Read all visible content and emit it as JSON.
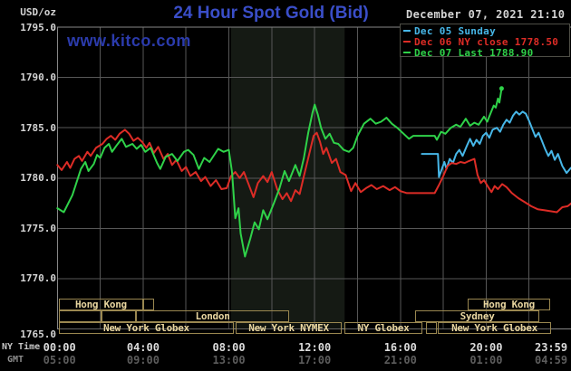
{
  "header": {
    "title": "24 Hour Spot Gold (Bid)",
    "datetime": "December 07, 2021 21:10",
    "watermark": "www.kitco.com"
  },
  "colors": {
    "background": "#000000",
    "title_blue": "#3a4ec8",
    "watermark_blue": "#2b3bac",
    "axis_text": "#d4d4d4",
    "x_ny_text": "#dcdcdc",
    "x_gmt_text": "#5c5c5c",
    "grid": "#575757",
    "plot_border": "#878787",
    "band": "#151a14",
    "session_text": "#e9d6a0",
    "session_border": "#9a8750",
    "legend_border": "#4e4e46"
  },
  "sessions": {
    "rows": [
      {
        "name": "asia-row",
        "boxes": [
          {
            "label": "Hong Kong",
            "h0": 0.07,
            "h1": 4.0
          },
          {
            "label": "",
            "h0": 4.0,
            "h1": 4.51
          },
          {
            "label": "Hong Kong",
            "h0": 19.14,
            "h1": 22.98
          }
        ]
      },
      {
        "name": "europe-row",
        "boxes": [
          {
            "label": "",
            "h0": 0.07,
            "h1": 2.06
          },
          {
            "label": "",
            "h0": 2.06,
            "h1": 3.67
          },
          {
            "label": "London",
            "h0": 3.67,
            "h1": 10.81
          },
          {
            "label": "Sydney",
            "h0": 16.69,
            "h1": 22.48
          }
        ]
      },
      {
        "name": "newyork-row",
        "boxes": [
          {
            "label": "New York Globex",
            "h0": 0.07,
            "h1": 8.23
          },
          {
            "label": "New York NYMEX",
            "h0": 8.32,
            "h1": 13.26
          },
          {
            "label": "NY Globex",
            "h0": 13.39,
            "h1": 17.02
          },
          {
            "label": "",
            "h0": 17.19,
            "h1": 17.7
          },
          {
            "label": "New York Globex",
            "h0": 17.74,
            "h1": 23.03
          }
        ]
      }
    ]
  },
  "chart_data": {
    "type": "line",
    "title": "24 Hour Spot Gold (Bid)",
    "timestamp": "December 07, 2021 21:10",
    "legend_position": "top-right",
    "grid": true,
    "x_axis": {
      "unit": "time of day",
      "range_hours": [
        0,
        24
      ],
      "gridline_every_hours": 2,
      "tick_rows": [
        {
          "label": "NY Time",
          "ticks": [
            "00:00",
            "04:00",
            "08:00",
            "12:00",
            "16:00",
            "20:00",
            "23:59"
          ]
        },
        {
          "label": "GMT",
          "ticks": [
            "05:00",
            "09:00",
            "13:00",
            "17:00",
            "21:00",
            "01:00",
            "04:59"
          ]
        }
      ]
    },
    "y_axis": {
      "label": "USD/oz",
      "range": [
        1765,
        1795
      ],
      "tick_step": 5,
      "tick_labels": [
        "1795.0",
        "1790.0",
        "1785.0",
        "1780.0",
        "1775.0",
        "1770.0",
        "1765.0"
      ]
    },
    "nymex_session_band_hours": [
      8.1,
      13.4
    ],
    "series": [
      {
        "name": "Dec 05 Sunday",
        "color": "#47b7e8",
        "points": [
          [
            17.0,
            1782.4
          ],
          [
            17.75,
            1782.4
          ],
          [
            17.8,
            1780.1
          ],
          [
            17.95,
            1781.0
          ],
          [
            18.05,
            1781.6
          ],
          [
            18.15,
            1780.9
          ],
          [
            18.3,
            1781.9
          ],
          [
            18.45,
            1781.5
          ],
          [
            18.6,
            1782.4
          ],
          [
            18.75,
            1782.8
          ],
          [
            18.9,
            1782.2
          ],
          [
            19.1,
            1783.2
          ],
          [
            19.25,
            1783.9
          ],
          [
            19.4,
            1783.2
          ],
          [
            19.55,
            1783.8
          ],
          [
            19.7,
            1783.4
          ],
          [
            19.85,
            1784.2
          ],
          [
            20.0,
            1784.5
          ],
          [
            20.15,
            1784.0
          ],
          [
            20.3,
            1784.8
          ],
          [
            20.5,
            1785.0
          ],
          [
            20.65,
            1784.6
          ],
          [
            20.8,
            1785.3
          ],
          [
            20.95,
            1785.8
          ],
          [
            21.1,
            1785.5
          ],
          [
            21.25,
            1786.2
          ],
          [
            21.4,
            1786.6
          ],
          [
            21.55,
            1786.3
          ],
          [
            21.7,
            1786.6
          ],
          [
            21.85,
            1786.4
          ],
          [
            22.0,
            1785.7
          ],
          [
            22.15,
            1784.9
          ],
          [
            22.3,
            1784.1
          ],
          [
            22.45,
            1784.5
          ],
          [
            22.6,
            1783.7
          ],
          [
            22.75,
            1782.9
          ],
          [
            22.9,
            1782.2
          ],
          [
            23.05,
            1782.7
          ],
          [
            23.2,
            1781.8
          ],
          [
            23.35,
            1782.4
          ],
          [
            23.55,
            1781.2
          ],
          [
            23.75,
            1780.5
          ],
          [
            23.95,
            1781.0
          ]
        ]
      },
      {
        "name": "Dec 06 NY close 1778.50",
        "color": "#dd2c26",
        "points": [
          [
            0.0,
            1781.3
          ],
          [
            0.2,
            1780.8
          ],
          [
            0.45,
            1781.6
          ],
          [
            0.6,
            1781.0
          ],
          [
            0.8,
            1781.9
          ],
          [
            1.0,
            1782.2
          ],
          [
            1.15,
            1781.7
          ],
          [
            1.4,
            1782.6
          ],
          [
            1.55,
            1782.2
          ],
          [
            1.8,
            1783.0
          ],
          [
            2.1,
            1783.4
          ],
          [
            2.3,
            1783.9
          ],
          [
            2.5,
            1784.2
          ],
          [
            2.7,
            1783.8
          ],
          [
            2.9,
            1784.4
          ],
          [
            3.15,
            1784.8
          ],
          [
            3.35,
            1784.4
          ],
          [
            3.55,
            1783.7
          ],
          [
            3.75,
            1784.0
          ],
          [
            3.95,
            1783.6
          ],
          [
            4.15,
            1783.0
          ],
          [
            4.3,
            1783.5
          ],
          [
            4.5,
            1782.5
          ],
          [
            4.7,
            1783.1
          ],
          [
            4.95,
            1781.9
          ],
          [
            5.15,
            1782.4
          ],
          [
            5.35,
            1781.3
          ],
          [
            5.55,
            1781.8
          ],
          [
            5.8,
            1780.7
          ],
          [
            6.0,
            1781.1
          ],
          [
            6.2,
            1780.2
          ],
          [
            6.45,
            1780.6
          ],
          [
            6.7,
            1779.7
          ],
          [
            6.9,
            1780.1
          ],
          [
            7.15,
            1779.2
          ],
          [
            7.4,
            1779.8
          ],
          [
            7.65,
            1778.9
          ],
          [
            7.9,
            1779.0
          ],
          [
            8.1,
            1780.2
          ],
          [
            8.3,
            1780.6
          ],
          [
            8.5,
            1780.0
          ],
          [
            8.7,
            1780.6
          ],
          [
            8.9,
            1779.5
          ],
          [
            9.15,
            1778.1
          ],
          [
            9.35,
            1779.5
          ],
          [
            9.6,
            1780.2
          ],
          [
            9.8,
            1779.6
          ],
          [
            10.0,
            1780.6
          ],
          [
            10.25,
            1778.9
          ],
          [
            10.5,
            1777.9
          ],
          [
            10.7,
            1778.5
          ],
          [
            10.9,
            1777.7
          ],
          [
            11.1,
            1778.8
          ],
          [
            11.3,
            1778.4
          ],
          [
            11.5,
            1780.2
          ],
          [
            11.75,
            1782.4
          ],
          [
            11.95,
            1784.2
          ],
          [
            12.1,
            1784.5
          ],
          [
            12.25,
            1783.6
          ],
          [
            12.4,
            1782.4
          ],
          [
            12.55,
            1783.0
          ],
          [
            12.8,
            1781.5
          ],
          [
            13.0,
            1781.9
          ],
          [
            13.2,
            1780.6
          ],
          [
            13.45,
            1780.3
          ],
          [
            13.7,
            1778.7
          ],
          [
            13.9,
            1779.5
          ],
          [
            14.15,
            1778.6
          ],
          [
            14.4,
            1779.0
          ],
          [
            14.65,
            1779.3
          ],
          [
            14.9,
            1778.9
          ],
          [
            15.2,
            1779.2
          ],
          [
            15.5,
            1778.8
          ],
          [
            15.75,
            1779.1
          ],
          [
            16.0,
            1778.7
          ],
          [
            16.3,
            1778.5
          ],
          [
            16.7,
            1778.5
          ],
          [
            17.0,
            1778.5
          ],
          [
            17.6,
            1778.5
          ],
          [
            17.8,
            1779.3
          ],
          [
            18.0,
            1780.2
          ],
          [
            18.2,
            1781.2
          ],
          [
            18.4,
            1781.5
          ],
          [
            18.6,
            1781.4
          ],
          [
            18.8,
            1781.6
          ],
          [
            19.0,
            1781.5
          ],
          [
            19.2,
            1781.7
          ],
          [
            19.45,
            1781.9
          ],
          [
            19.6,
            1780.3
          ],
          [
            19.75,
            1779.5
          ],
          [
            19.9,
            1779.8
          ],
          [
            20.1,
            1779.1
          ],
          [
            20.25,
            1778.6
          ],
          [
            20.4,
            1779.2
          ],
          [
            20.55,
            1778.9
          ],
          [
            20.75,
            1779.4
          ],
          [
            20.95,
            1779.1
          ],
          [
            21.2,
            1778.5
          ],
          [
            21.5,
            1778.0
          ],
          [
            21.8,
            1777.6
          ],
          [
            22.1,
            1777.2
          ],
          [
            22.4,
            1776.9
          ],
          [
            22.7,
            1776.8
          ],
          [
            23.0,
            1776.7
          ],
          [
            23.3,
            1776.6
          ],
          [
            23.55,
            1777.1
          ],
          [
            23.8,
            1777.2
          ],
          [
            23.98,
            1777.5
          ]
        ]
      },
      {
        "name": "Dec 07 Last 1788.90",
        "color": "#2fd249",
        "points": [
          [
            0.0,
            1777.0
          ],
          [
            0.3,
            1776.6
          ],
          [
            0.7,
            1778.3
          ],
          [
            1.1,
            1780.9
          ],
          [
            1.3,
            1781.6
          ],
          [
            1.45,
            1780.7
          ],
          [
            1.7,
            1781.4
          ],
          [
            1.85,
            1782.3
          ],
          [
            2.0,
            1782.0
          ],
          [
            2.2,
            1783.0
          ],
          [
            2.4,
            1783.4
          ],
          [
            2.55,
            1782.6
          ],
          [
            2.75,
            1783.2
          ],
          [
            3.0,
            1783.9
          ],
          [
            3.2,
            1783.1
          ],
          [
            3.5,
            1783.4
          ],
          [
            3.7,
            1782.9
          ],
          [
            3.9,
            1783.3
          ],
          [
            4.1,
            1782.6
          ],
          [
            4.35,
            1783.0
          ],
          [
            4.65,
            1781.5
          ],
          [
            4.8,
            1780.9
          ],
          [
            5.05,
            1782.1
          ],
          [
            5.35,
            1782.4
          ],
          [
            5.6,
            1781.7
          ],
          [
            5.9,
            1782.6
          ],
          [
            6.1,
            1782.8
          ],
          [
            6.35,
            1782.3
          ],
          [
            6.6,
            1780.9
          ],
          [
            6.85,
            1782.0
          ],
          [
            7.1,
            1781.6
          ],
          [
            7.5,
            1782.9
          ],
          [
            7.75,
            1782.6
          ],
          [
            8.0,
            1782.8
          ],
          [
            8.15,
            1780.5
          ],
          [
            8.3,
            1776.0
          ],
          [
            8.45,
            1777.0
          ],
          [
            8.55,
            1774.5
          ],
          [
            8.75,
            1772.2
          ],
          [
            9.0,
            1774.0
          ],
          [
            9.2,
            1775.6
          ],
          [
            9.4,
            1774.9
          ],
          [
            9.6,
            1776.8
          ],
          [
            9.8,
            1775.9
          ],
          [
            10.1,
            1777.5
          ],
          [
            10.35,
            1778.9
          ],
          [
            10.6,
            1780.7
          ],
          [
            10.8,
            1779.7
          ],
          [
            11.1,
            1781.3
          ],
          [
            11.3,
            1780.2
          ],
          [
            11.5,
            1782.0
          ],
          [
            11.7,
            1784.5
          ],
          [
            11.9,
            1786.5
          ],
          [
            12.0,
            1787.3
          ],
          [
            12.15,
            1786.3
          ],
          [
            12.3,
            1785.0
          ],
          [
            12.5,
            1783.9
          ],
          [
            12.7,
            1784.4
          ],
          [
            12.9,
            1783.5
          ],
          [
            13.1,
            1783.4
          ],
          [
            13.35,
            1782.8
          ],
          [
            13.6,
            1782.6
          ],
          [
            13.8,
            1783.0
          ],
          [
            14.0,
            1784.2
          ],
          [
            14.3,
            1785.4
          ],
          [
            14.6,
            1785.9
          ],
          [
            14.85,
            1785.4
          ],
          [
            15.1,
            1785.6
          ],
          [
            15.35,
            1786.0
          ],
          [
            15.6,
            1785.4
          ],
          [
            15.85,
            1785.0
          ],
          [
            16.1,
            1784.5
          ],
          [
            16.4,
            1783.9
          ],
          [
            16.6,
            1784.2
          ],
          [
            17.0,
            1784.2
          ],
          [
            17.6,
            1784.2
          ],
          [
            17.7,
            1783.8
          ],
          [
            17.9,
            1784.6
          ],
          [
            18.1,
            1784.4
          ],
          [
            18.35,
            1785.0
          ],
          [
            18.6,
            1785.3
          ],
          [
            18.8,
            1785.1
          ],
          [
            19.05,
            1785.9
          ],
          [
            19.25,
            1785.2
          ],
          [
            19.45,
            1785.5
          ],
          [
            19.65,
            1785.3
          ],
          [
            19.9,
            1786.1
          ],
          [
            20.05,
            1785.6
          ],
          [
            20.2,
            1786.4
          ],
          [
            20.35,
            1787.2
          ],
          [
            20.45,
            1787.0
          ],
          [
            20.55,
            1787.9
          ],
          [
            20.62,
            1787.5
          ],
          [
            20.72,
            1788.9
          ]
        ]
      }
    ]
  }
}
